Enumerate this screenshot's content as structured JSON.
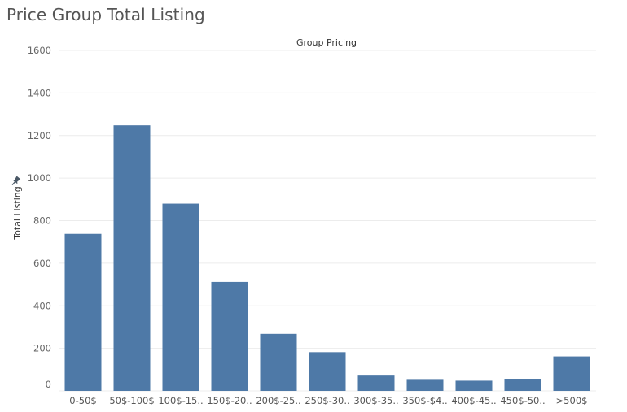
{
  "title": "Price Group Total Listing",
  "chart_data": {
    "type": "bar",
    "column_header": "Group Pricing",
    "ylabel": "Total Listing",
    "ylim": [
      0,
      1600
    ],
    "yticks": [
      0,
      200,
      400,
      600,
      800,
      1000,
      1200,
      1400,
      1600
    ],
    "grid": true,
    "categories": [
      "0-50$",
      "50$-100$",
      "100$-15..",
      "150$-20..",
      "200$-25..",
      "250$-30..",
      "300$-35..",
      "350$-$4..",
      "400$-45..",
      "450$-50..",
      ">500$"
    ],
    "values": [
      738,
      1248,
      880,
      512,
      268,
      182,
      72,
      52,
      48,
      56,
      162
    ],
    "bar_color": "#4e79a7",
    "grid_color": "#ececec",
    "axis_icon": "pin-icon"
  }
}
